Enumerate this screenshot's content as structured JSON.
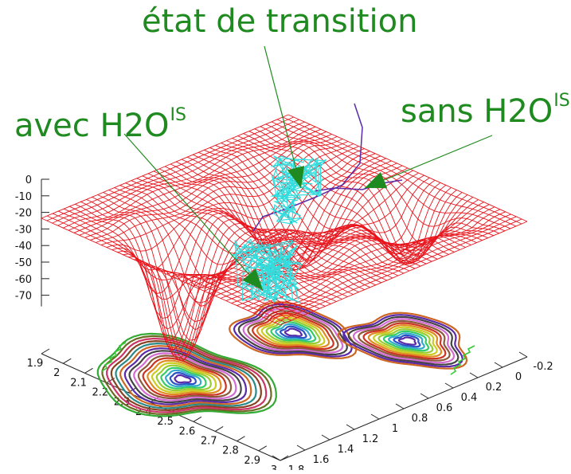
{
  "chart_data": {
    "type": "surface3d",
    "title": "",
    "annotations": [
      {
        "name": "transition-state",
        "text": "état de transition",
        "sup": ""
      },
      {
        "name": "with-water",
        "text": "avec H2O",
        "sup": "IS"
      },
      {
        "name": "without-water",
        "text": "sans H2O",
        "sup": "IS"
      }
    ],
    "z_axis": {
      "ticks": [
        "0",
        "-10",
        "-20",
        "-30",
        "-40",
        "-50",
        "-60",
        "-70"
      ],
      "range": [
        -75,
        0
      ]
    },
    "x_axis": {
      "ticks": [
        "1.9",
        "2",
        "2.1",
        "2.2",
        "2.3",
        "2.4",
        "2.5",
        "2.6",
        "2.7",
        "2.8",
        "2.9",
        "3"
      ],
      "range": [
        1.9,
        3.0
      ]
    },
    "y_axis": {
      "ticks": [
        "-0.2",
        "0",
        "0.2",
        "0.4",
        "0.6",
        "0.8",
        "1",
        "1.2",
        "1.4",
        "1.6",
        "1.8"
      ],
      "range": [
        -0.2,
        1.8
      ]
    },
    "surface": {
      "description_of_wells": [
        {
          "x": 2.35,
          "y": 1.45,
          "depth": -72
        },
        {
          "x": 2.35,
          "y": 0.55,
          "depth": -45
        },
        {
          "x": 2.65,
          "y": 0.15,
          "depth": -35
        }
      ],
      "color": "#e8141c"
    },
    "contours": {
      "levels": 18
    },
    "trajectory_colors": {
      "cyan": "#33dddd",
      "purple": "#5a2aa8",
      "green": "#33cc33"
    },
    "arrow_color": "#1f8a1f"
  }
}
